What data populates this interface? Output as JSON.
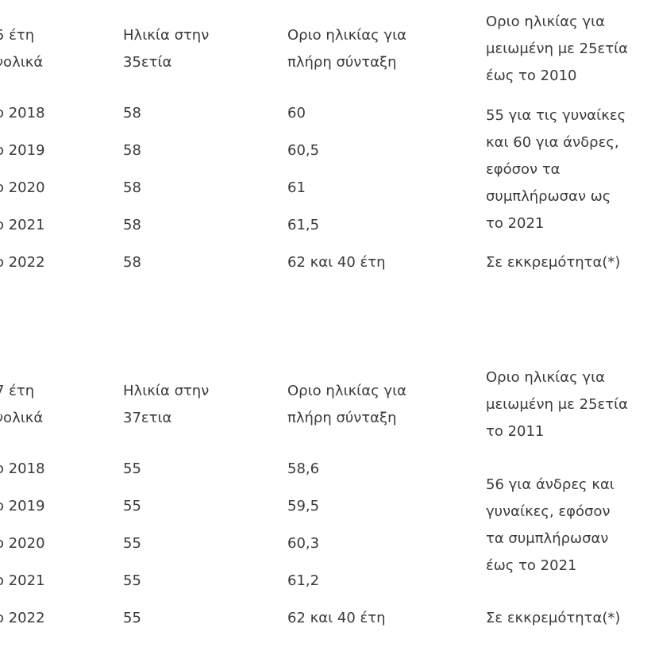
{
  "tables": [
    {
      "header": [
        [
          "5 έτη",
          "νολικά"
        ],
        [
          "Ηλικία στην",
          "35ετία"
        ],
        [
          "Οριο ηλικίας για",
          "πλήρη σύνταξη"
        ],
        [
          "Οριο ηλικίας για",
          "μειωμένη με 25ετία",
          "έως το 2010"
        ]
      ],
      "rows": [
        [
          "ο 2018",
          "58",
          "60"
        ],
        [
          "ο 2019",
          "58",
          "60,5"
        ],
        [
          "ο 2020",
          "58",
          "61"
        ],
        [
          "ο 2021",
          "58",
          "61,5"
        ],
        [
          "ο 2022",
          "58",
          "62 και 40 έτη"
        ]
      ],
      "note": [
        "55 για τις γυναίκες",
        "και 60 για άνδρες,",
        "εφόσον τα",
        "συμπλήρωσαν ως",
        "το 2021"
      ],
      "status": "Σε εκκρεμότητα(*)"
    },
    {
      "header": [
        [
          "7 έτη",
          "νολικά"
        ],
        [
          "Ηλικία στην",
          "37ετια"
        ],
        [
          "Οριο ηλικίας για",
          "πλήρη σύνταξη"
        ],
        [
          "Οριο ηλικίας για",
          "μειωμένη με 25ετία",
          "το 2011"
        ]
      ],
      "rows": [
        [
          "ο 2018",
          "55",
          "58,6"
        ],
        [
          "ο 2019",
          "55",
          "59,5"
        ],
        [
          "ο 2020",
          "55",
          "60,3"
        ],
        [
          "ο 2021",
          "55",
          "61,2"
        ],
        [
          "ο 2022",
          "55",
          "62 και 40 έτη"
        ]
      ],
      "note": [
        "56 για άνδρες και",
        "γυναίκες, εφόσον",
        "τα συμπλήρωσαν",
        "έως το 2021"
      ],
      "status": "Σε εκκρεμότητα(*)"
    }
  ]
}
